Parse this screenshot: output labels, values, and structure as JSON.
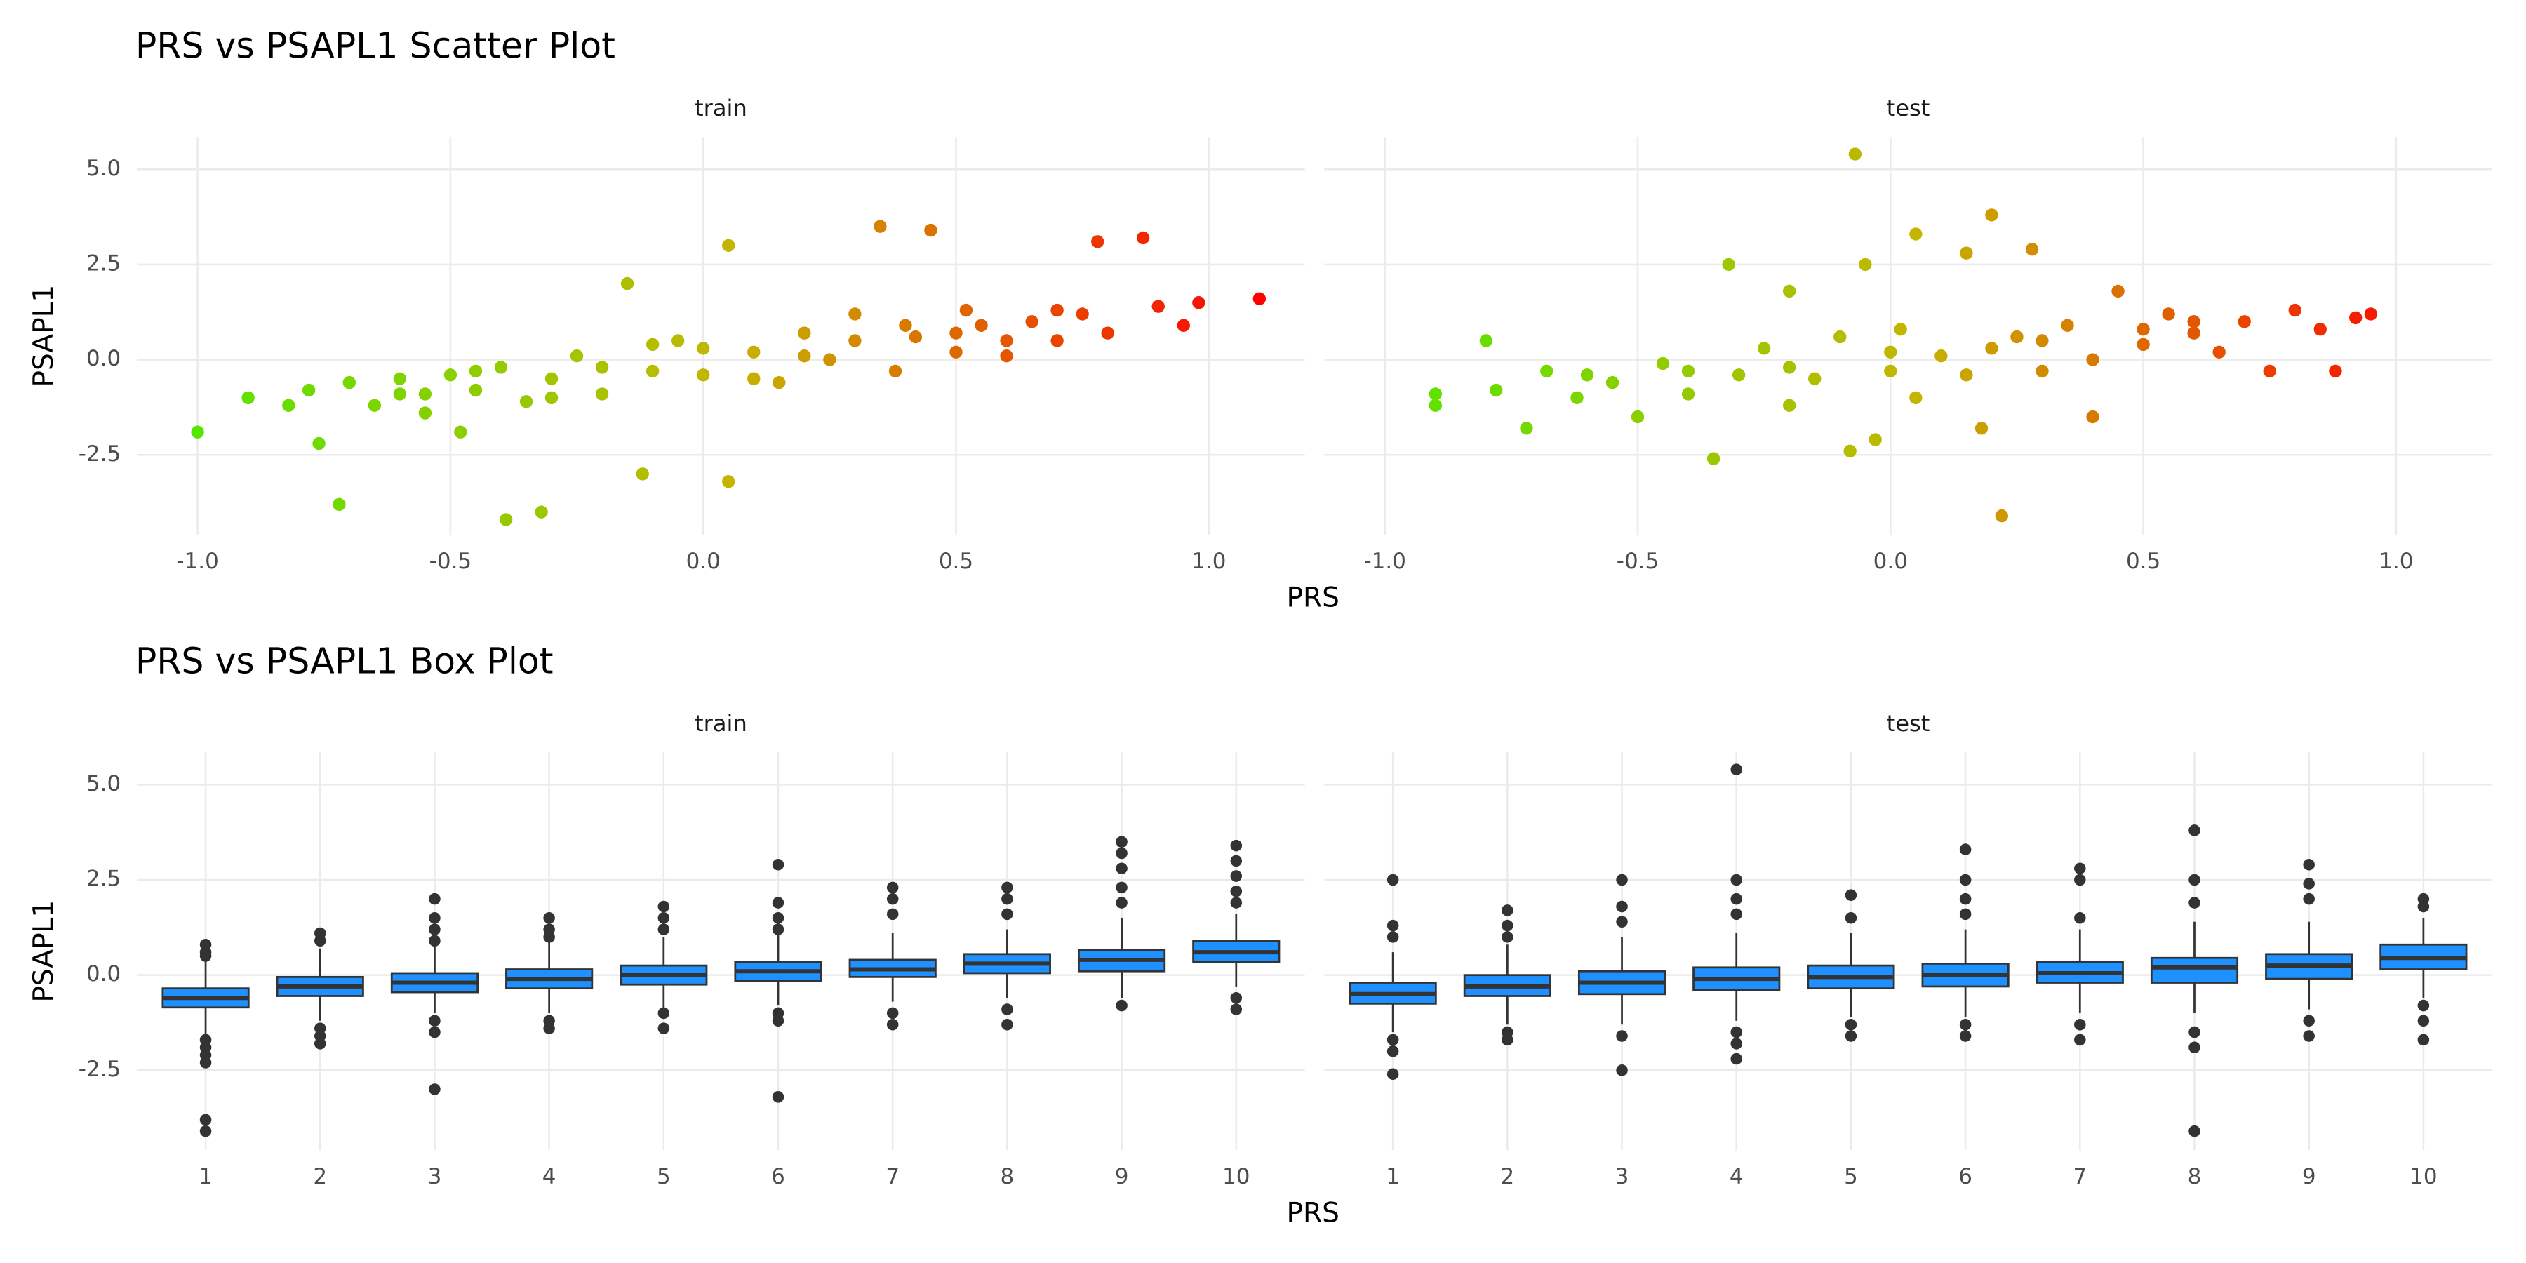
{
  "chart_data": [
    {
      "type": "scatter",
      "title": "PRS vs PSAPL1 Scatter Plot",
      "xlabel": "PRS",
      "ylabel": "PSAPL1",
      "xlim": [
        -1.12,
        1.19
      ],
      "ylim": [
        -4.6,
        5.85
      ],
      "xticks": [
        {
          "value": -1,
          "label": "-1.0"
        },
        -0.5,
        {
          "value": 0,
          "label": "0.0"
        },
        0.5,
        {
          "value": 1,
          "label": "1.0"
        }
      ],
      "yticks": [
        {
          "value": 5,
          "label": "5.0"
        },
        2.5,
        {
          "value": 0,
          "label": "0.0"
        },
        -2.5
      ],
      "grid": true,
      "color_gradient": [
        "#55e600",
        "#c4b600",
        "#ff0000"
      ],
      "facets": [
        {
          "name": "train",
          "x": [
            -1.0,
            -0.9,
            -0.82,
            -0.78,
            -0.76,
            -0.72,
            -0.7,
            -0.65,
            -0.6,
            -0.55,
            -0.5,
            -0.48,
            -0.45,
            -0.4,
            -0.39,
            -0.35,
            -0.32,
            -0.3,
            -0.25,
            -0.2,
            -0.15,
            -0.12,
            -0.1,
            -0.05,
            0.0,
            0.05,
            0.05,
            0.1,
            0.15,
            0.2,
            0.25,
            0.3,
            0.35,
            0.38,
            0.42,
            0.45,
            0.5,
            0.52,
            0.55,
            0.6,
            0.65,
            0.7,
            0.75,
            0.78,
            0.8,
            0.87,
            0.9,
            0.95,
            0.98,
            1.1,
            -0.6,
            -0.55,
            -0.45,
            -0.3,
            -0.2,
            -0.1,
            0.0,
            0.1,
            0.2,
            0.3,
            0.4,
            0.5,
            0.6,
            0.7
          ],
          "y": [
            -1.9,
            -1.0,
            -1.2,
            -0.8,
            -2.2,
            -3.8,
            -0.6,
            -1.2,
            -0.9,
            -1.4,
            -0.4,
            -1.9,
            -0.8,
            -0.2,
            -4.2,
            -1.1,
            -4.0,
            -0.5,
            0.1,
            -0.9,
            2.0,
            -3.0,
            -0.3,
            0.5,
            -0.4,
            -3.2,
            3.0,
            0.2,
            -0.6,
            0.7,
            0.0,
            1.2,
            3.5,
            -0.3,
            0.6,
            3.4,
            0.2,
            1.3,
            0.9,
            0.1,
            1.0,
            0.5,
            1.2,
            3.1,
            0.7,
            3.2,
            1.4,
            0.9,
            1.5,
            1.6,
            -0.5,
            -0.9,
            -0.3,
            -1.0,
            -0.2,
            0.4,
            0.3,
            -0.5,
            0.1,
            0.5,
            0.9,
            0.7,
            0.5,
            1.3
          ]
        },
        {
          "name": "test",
          "x": [
            -0.9,
            -0.9,
            -0.8,
            -0.78,
            -0.72,
            -0.68,
            -0.62,
            -0.55,
            -0.5,
            -0.45,
            -0.4,
            -0.35,
            -0.32,
            -0.3,
            -0.25,
            -0.2,
            -0.2,
            -0.15,
            -0.1,
            -0.08,
            -0.07,
            -0.05,
            -0.03,
            0.0,
            0.02,
            0.05,
            0.05,
            0.1,
            0.15,
            0.15,
            0.18,
            0.2,
            0.22,
            0.25,
            0.28,
            0.3,
            0.35,
            0.4,
            0.4,
            0.45,
            0.5,
            0.55,
            0.6,
            0.65,
            0.7,
            0.75,
            0.8,
            0.85,
            0.88,
            0.92,
            0.95,
            -0.6,
            -0.4,
            -0.2,
            0,
            0.2,
            0.3,
            0.5,
            0.6
          ],
          "y": [
            -0.9,
            -1.2,
            0.5,
            -0.8,
            -1.8,
            -0.3,
            -1.0,
            -0.6,
            -1.5,
            -0.1,
            -0.9,
            -2.6,
            2.5,
            -0.4,
            0.3,
            -1.2,
            1.8,
            -0.5,
            0.6,
            -2.4,
            5.4,
            2.5,
            -2.1,
            -0.3,
            0.8,
            -1.0,
            3.3,
            0.1,
            -0.4,
            2.8,
            -1.8,
            3.8,
            -4.1,
            0.6,
            2.9,
            -0.3,
            0.9,
            0.0,
            -1.5,
            1.8,
            0.4,
            1.2,
            0.7,
            0.2,
            1.0,
            -0.3,
            1.3,
            0.8,
            -0.3,
            1.1,
            1.2,
            -0.4,
            -0.3,
            -0.2,
            0.2,
            0.3,
            0.5,
            0.8,
            1.0
          ]
        }
      ]
    },
    {
      "type": "box",
      "title": "PRS vs PSAPL1 Box Plot",
      "xlabel": "PRS",
      "ylabel": "PSAPL1",
      "categories": [
        "1",
        "2",
        "3",
        "4",
        "5",
        "6",
        "7",
        "8",
        "9",
        "10"
      ],
      "ylim": [
        -4.6,
        5.85
      ],
      "yticks": [
        {
          "value": 5,
          "label": "5.0"
        },
        2.5,
        {
          "value": 0,
          "label": "0.0"
        },
        -2.5
      ],
      "grid": true,
      "color": "#1e90ff",
      "line_color": "#333333",
      "facets": [
        {
          "name": "train",
          "boxes": [
            {
              "q1": -0.85,
              "median": -0.6,
              "q3": -0.35,
              "whisker_low": -1.6,
              "whisker_high": 0.4,
              "outliers": [
                0.8,
                0.6,
                0.5,
                -1.7,
                -1.9,
                -2.1,
                -2.3,
                -3.8,
                -4.1
              ]
            },
            {
              "q1": -0.55,
              "median": -0.3,
              "q3": -0.05,
              "whisker_low": -1.2,
              "whisker_high": 0.7,
              "outliers": [
                1.1,
                0.9,
                -1.4,
                -1.6,
                -1.8
              ]
            },
            {
              "q1": -0.45,
              "median": -0.2,
              "q3": 0.05,
              "whisker_low": -1.0,
              "whisker_high": 0.8,
              "outliers": [
                2.0,
                1.5,
                1.2,
                0.9,
                -1.2,
                -1.5,
                -3.0
              ]
            },
            {
              "q1": -0.35,
              "median": -0.1,
              "q3": 0.15,
              "whisker_low": -1.0,
              "whisker_high": 0.9,
              "outliers": [
                1.5,
                1.2,
                1.0,
                -1.2,
                -1.4
              ]
            },
            {
              "q1": -0.25,
              "median": 0.0,
              "q3": 0.25,
              "whisker_low": -0.9,
              "whisker_high": 1.0,
              "outliers": [
                1.8,
                1.5,
                1.2,
                -1.0,
                -1.4
              ]
            },
            {
              "q1": -0.15,
              "median": 0.1,
              "q3": 0.35,
              "whisker_low": -0.8,
              "whisker_high": 1.1,
              "outliers": [
                2.9,
                1.9,
                1.5,
                1.2,
                -1.0,
                -1.2,
                -3.2
              ]
            },
            {
              "q1": -0.05,
              "median": 0.15,
              "q3": 0.4,
              "whisker_low": -0.7,
              "whisker_high": 1.1,
              "outliers": [
                2.3,
                2.0,
                1.6,
                -1.0,
                -1.3
              ]
            },
            {
              "q1": 0.05,
              "median": 0.3,
              "q3": 0.55,
              "whisker_low": -0.6,
              "whisker_high": 1.2,
              "outliers": [
                2.3,
                2.0,
                1.6,
                -0.9,
                -1.3
              ]
            },
            {
              "q1": 0.1,
              "median": 0.4,
              "q3": 0.65,
              "whisker_low": -0.6,
              "whisker_high": 1.5,
              "outliers": [
                3.5,
                3.2,
                2.8,
                2.3,
                1.9,
                -0.8
              ]
            },
            {
              "q1": 0.35,
              "median": 0.6,
              "q3": 0.9,
              "whisker_low": -0.3,
              "whisker_high": 1.6,
              "outliers": [
                3.4,
                3.0,
                2.6,
                2.2,
                1.9,
                -0.6,
                -0.9
              ]
            }
          ]
        },
        {
          "name": "test",
          "boxes": [
            {
              "q1": -0.75,
              "median": -0.5,
              "q3": -0.2,
              "whisker_low": -1.5,
              "whisker_high": 0.6,
              "outliers": [
                2.5,
                1.3,
                1.0,
                -1.7,
                -2.0,
                -2.6
              ]
            },
            {
              "q1": -0.55,
              "median": -0.3,
              "q3": 0.0,
              "whisker_low": -1.3,
              "whisker_high": 0.8,
              "outliers": [
                1.7,
                1.3,
                1.0,
                -1.5,
                -1.7
              ]
            },
            {
              "q1": -0.5,
              "median": -0.2,
              "q3": 0.1,
              "whisker_low": -1.3,
              "whisker_high": 1.0,
              "outliers": [
                2.5,
                1.8,
                1.4,
                -1.6,
                -2.5
              ]
            },
            {
              "q1": -0.4,
              "median": -0.1,
              "q3": 0.2,
              "whisker_low": -1.2,
              "whisker_high": 1.1,
              "outliers": [
                5.4,
                2.5,
                2.0,
                1.6,
                -1.5,
                -1.8,
                -2.2
              ]
            },
            {
              "q1": -0.35,
              "median": -0.05,
              "q3": 0.25,
              "whisker_low": -1.1,
              "whisker_high": 1.1,
              "outliers": [
                2.1,
                1.5,
                -1.3,
                -1.6
              ]
            },
            {
              "q1": -0.3,
              "median": 0.0,
              "q3": 0.3,
              "whisker_low": -1.1,
              "whisker_high": 1.2,
              "outliers": [
                3.3,
                2.5,
                2.0,
                1.6,
                -1.3,
                -1.6
              ]
            },
            {
              "q1": -0.2,
              "median": 0.05,
              "q3": 0.35,
              "whisker_low": -1.0,
              "whisker_high": 1.2,
              "outliers": [
                2.8,
                2.5,
                1.5,
                -1.3,
                -1.7
              ]
            },
            {
              "q1": -0.2,
              "median": 0.2,
              "q3": 0.45,
              "whisker_low": -1.0,
              "whisker_high": 1.4,
              "outliers": [
                3.8,
                2.5,
                1.9,
                -1.5,
                -1.9,
                -4.1
              ]
            },
            {
              "q1": -0.1,
              "median": 0.25,
              "q3": 0.55,
              "whisker_low": -0.9,
              "whisker_high": 1.4,
              "outliers": [
                2.9,
                2.4,
                2.0,
                -1.2,
                -1.6
              ]
            },
            {
              "q1": 0.15,
              "median": 0.45,
              "q3": 0.8,
              "whisker_low": -0.6,
              "whisker_high": 1.5,
              "outliers": [
                2.0,
                1.8,
                -0.8,
                -1.2,
                -1.7
              ]
            }
          ]
        }
      ]
    }
  ]
}
